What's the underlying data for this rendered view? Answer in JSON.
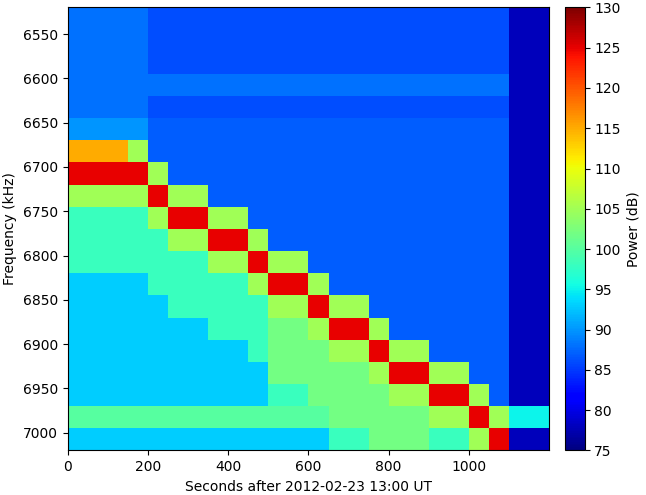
{
  "chart_data": {
    "type": "heatmap",
    "xlabel": "Seconds after 2012-02-23 13:00 UT",
    "ylabel": "Frequency (kHz)",
    "x_edges": [
      0,
      50,
      100,
      150,
      200,
      250,
      300,
      350,
      400,
      450,
      500,
      550,
      600,
      650,
      700,
      750,
      800,
      850,
      900,
      950,
      1000,
      1050,
      1100,
      1150,
      1200
    ],
    "y_edges": [
      6520,
      6545,
      6570,
      6595,
      6620,
      6645,
      6670,
      6695,
      6720,
      6745,
      6770,
      6795,
      6820,
      6845,
      6870,
      6895,
      6920,
      6945,
      6970,
      6995,
      7020
    ],
    "cells": [
      [
        88,
        88,
        88,
        88,
        86,
        86,
        86,
        86,
        86,
        86,
        86,
        86,
        86,
        86,
        86,
        86,
        86,
        86,
        86,
        86,
        86,
        86,
        78,
        78
      ],
      [
        88,
        88,
        88,
        88,
        86,
        86,
        86,
        86,
        86,
        86,
        86,
        86,
        86,
        86,
        86,
        86,
        86,
        86,
        86,
        86,
        86,
        86,
        78,
        78
      ],
      [
        88,
        88,
        88,
        88,
        86,
        86,
        86,
        86,
        86,
        86,
        86,
        86,
        86,
        86,
        86,
        86,
        86,
        86,
        86,
        86,
        86,
        86,
        78,
        78
      ],
      [
        88,
        88,
        88,
        88,
        88,
        88,
        88,
        88,
        88,
        88,
        88,
        88,
        88,
        88,
        88,
        88,
        88,
        88,
        88,
        88,
        88,
        88,
        78,
        78
      ],
      [
        88,
        88,
        88,
        88,
        86,
        86,
        86,
        86,
        86,
        86,
        86,
        86,
        86,
        86,
        86,
        86,
        86,
        86,
        86,
        86,
        86,
        86,
        78,
        78
      ],
      [
        90,
        90,
        90,
        90,
        87,
        87,
        87,
        87,
        87,
        87,
        87,
        87,
        87,
        87,
        87,
        87,
        87,
        87,
        87,
        87,
        87,
        87,
        78,
        78
      ],
      [
        115,
        115,
        115,
        105,
        87,
        87,
        87,
        87,
        87,
        87,
        87,
        87,
        87,
        87,
        87,
        87,
        87,
        87,
        87,
        87,
        87,
        87,
        78,
        78
      ],
      [
        125,
        125,
        125,
        125,
        105,
        87,
        87,
        87,
        87,
        87,
        87,
        87,
        87,
        87,
        87,
        87,
        87,
        87,
        87,
        87,
        87,
        87,
        78,
        78
      ],
      [
        105,
        105,
        105,
        105,
        125,
        105,
        105,
        87,
        87,
        87,
        87,
        87,
        87,
        87,
        87,
        87,
        87,
        87,
        87,
        87,
        87,
        87,
        78,
        78
      ],
      [
        98,
        98,
        98,
        98,
        105,
        125,
        125,
        105,
        105,
        87,
        87,
        87,
        87,
        87,
        87,
        87,
        87,
        87,
        87,
        87,
        87,
        87,
        78,
        78
      ],
      [
        98,
        98,
        98,
        98,
        98,
        105,
        105,
        125,
        125,
        105,
        87,
        87,
        87,
        87,
        87,
        87,
        87,
        87,
        87,
        87,
        87,
        87,
        78,
        78
      ],
      [
        98,
        98,
        98,
        98,
        98,
        98,
        98,
        105,
        105,
        125,
        105,
        105,
        87,
        87,
        87,
        87,
        87,
        87,
        87,
        87,
        87,
        87,
        78,
        78
      ],
      [
        93,
        93,
        93,
        93,
        98,
        98,
        98,
        98,
        98,
        105,
        125,
        125,
        105,
        87,
        87,
        87,
        87,
        87,
        87,
        87,
        87,
        87,
        78,
        78
      ],
      [
        93,
        93,
        93,
        93,
        93,
        98,
        98,
        98,
        98,
        98,
        105,
        105,
        125,
        105,
        105,
        87,
        87,
        87,
        87,
        87,
        87,
        87,
        78,
        78
      ],
      [
        93,
        93,
        93,
        93,
        93,
        93,
        93,
        98,
        98,
        98,
        102,
        102,
        105,
        125,
        125,
        105,
        87,
        87,
        87,
        87,
        87,
        87,
        78,
        78
      ],
      [
        93,
        93,
        93,
        93,
        93,
        93,
        93,
        93,
        93,
        98,
        102,
        102,
        102,
        105,
        105,
        125,
        105,
        105,
        87,
        87,
        87,
        87,
        78,
        78
      ],
      [
        93,
        93,
        93,
        93,
        93,
        93,
        93,
        93,
        93,
        93,
        102,
        102,
        102,
        102,
        102,
        105,
        125,
        125,
        105,
        105,
        87,
        87,
        78,
        78
      ],
      [
        93,
        93,
        93,
        93,
        93,
        93,
        93,
        93,
        93,
        93,
        98,
        98,
        102,
        102,
        102,
        102,
        105,
        105,
        125,
        125,
        105,
        87,
        78,
        78
      ],
      [
        100,
        100,
        100,
        100,
        100,
        100,
        100,
        100,
        100,
        100,
        100,
        100,
        100,
        102,
        102,
        102,
        102,
        102,
        105,
        105,
        125,
        105,
        95,
        95
      ],
      [
        93,
        93,
        93,
        93,
        93,
        93,
        93,
        93,
        93,
        93,
        93,
        93,
        93,
        98,
        98,
        102,
        102,
        102,
        98,
        98,
        105,
        125,
        78,
        78
      ]
    ],
    "xlim": [
      0,
      1200
    ],
    "ylim": [
      7020,
      6520
    ],
    "xticks": [
      0,
      200,
      400,
      600,
      800,
      1000
    ],
    "yticks": [
      6550,
      6600,
      6650,
      6700,
      6750,
      6800,
      6850,
      6900,
      6950,
      7000
    ],
    "colorbar": {
      "label": "Power (dB)",
      "range": [
        75,
        130
      ],
      "ticks": [
        75,
        80,
        85,
        90,
        95,
        100,
        105,
        110,
        115,
        120,
        125,
        130
      ]
    }
  }
}
